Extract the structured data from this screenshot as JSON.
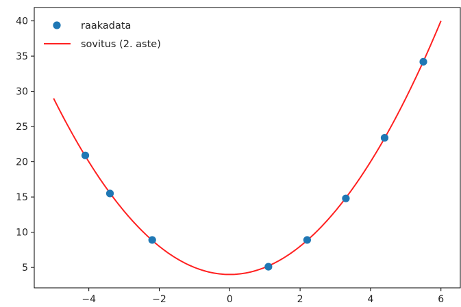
{
  "chart_data": {
    "type": "scatter",
    "xlim": [
      -5.55,
      6.55
    ],
    "ylim": [
      2.1,
      41.9
    ],
    "x_ticks": [
      -4,
      -2,
      0,
      2,
      4,
      6
    ],
    "y_ticks": [
      5,
      10,
      15,
      20,
      25,
      30,
      35,
      40
    ],
    "x_tick_labels": [
      "−4",
      "−2",
      "0",
      "2",
      "4",
      "6"
    ],
    "y_tick_labels": [
      "5",
      "10",
      "15",
      "20",
      "25",
      "30",
      "35",
      "40"
    ],
    "grid": false,
    "legend_position": "upper-left",
    "series": [
      {
        "name": "raakadata",
        "kind": "scatter",
        "color": "#1f77b4",
        "points": [
          {
            "x": -4.1,
            "y": 20.9
          },
          {
            "x": -3.4,
            "y": 15.5
          },
          {
            "x": -2.2,
            "y": 8.9
          },
          {
            "x": 1.1,
            "y": 5.1
          },
          {
            "x": 2.2,
            "y": 8.9
          },
          {
            "x": 3.3,
            "y": 14.8
          },
          {
            "x": 4.4,
            "y": 23.4
          },
          {
            "x": 5.5,
            "y": 34.2
          }
        ]
      },
      {
        "name": "sovitus (2. aste)",
        "kind": "line",
        "color": "#ff2020",
        "x_range": [
          -5,
          6
        ],
        "coefficients": {
          "a": 1.0,
          "b": 0.0,
          "c": 4.0
        }
      }
    ]
  }
}
